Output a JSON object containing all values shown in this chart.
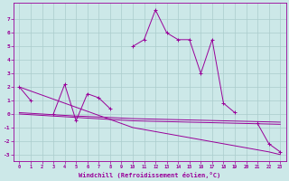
{
  "x": [
    0,
    1,
    2,
    3,
    4,
    5,
    6,
    7,
    8,
    9,
    10,
    11,
    12,
    13,
    14,
    15,
    16,
    17,
    18,
    19,
    20,
    21,
    22,
    23
  ],
  "line_main": [
    2.0,
    1.0,
    null,
    0.0,
    2.2,
    -0.5,
    1.5,
    1.2,
    0.4,
    null,
    5.0,
    5.5,
    7.7,
    6.0,
    5.5,
    5.5,
    3.0,
    5.5,
    0.8,
    0.1,
    null,
    -0.7,
    -2.2,
    -2.8
  ],
  "line_flat1": [
    0.0,
    -0.05,
    -0.1,
    -0.15,
    -0.2,
    -0.25,
    -0.3,
    -0.35,
    -0.4,
    -0.45,
    -0.5,
    -0.52,
    -0.54,
    -0.56,
    -0.58,
    -0.6,
    -0.62,
    -0.64,
    -0.66,
    -0.68,
    -0.7,
    -0.72,
    -0.74,
    -0.76
  ],
  "line_flat2": [
    0.1,
    0.05,
    0.0,
    -0.05,
    -0.1,
    -0.15,
    -0.18,
    -0.22,
    -0.26,
    -0.3,
    -0.34,
    -0.36,
    -0.38,
    -0.4,
    -0.42,
    -0.44,
    -0.46,
    -0.48,
    -0.5,
    -0.52,
    -0.54,
    -0.56,
    -0.58,
    -0.6
  ],
  "line_diag": [
    2.0,
    1.7,
    1.4,
    1.1,
    0.8,
    0.5,
    0.2,
    -0.1,
    -0.4,
    -0.7,
    -1.0,
    -1.15,
    -1.3,
    -1.45,
    -1.6,
    -1.75,
    -1.9,
    -2.05,
    -2.2,
    -2.35,
    -2.5,
    -2.65,
    -2.8,
    -3.0
  ],
  "color": "#990099",
  "bgcolor": "#cce8e8",
  "grid_color": "#aacccc",
  "xlabel": "Windchill (Refroidissement éolien,°C)",
  "xlim": [
    -0.5,
    23.5
  ],
  "ylim": [
    -3.5,
    8.2
  ],
  "yticks": [
    -3,
    -2,
    -1,
    0,
    1,
    2,
    3,
    4,
    5,
    6,
    7
  ],
  "xticks": [
    0,
    1,
    2,
    3,
    4,
    5,
    6,
    7,
    8,
    9,
    10,
    11,
    12,
    13,
    14,
    15,
    16,
    17,
    18,
    19,
    20,
    21,
    22,
    23
  ]
}
